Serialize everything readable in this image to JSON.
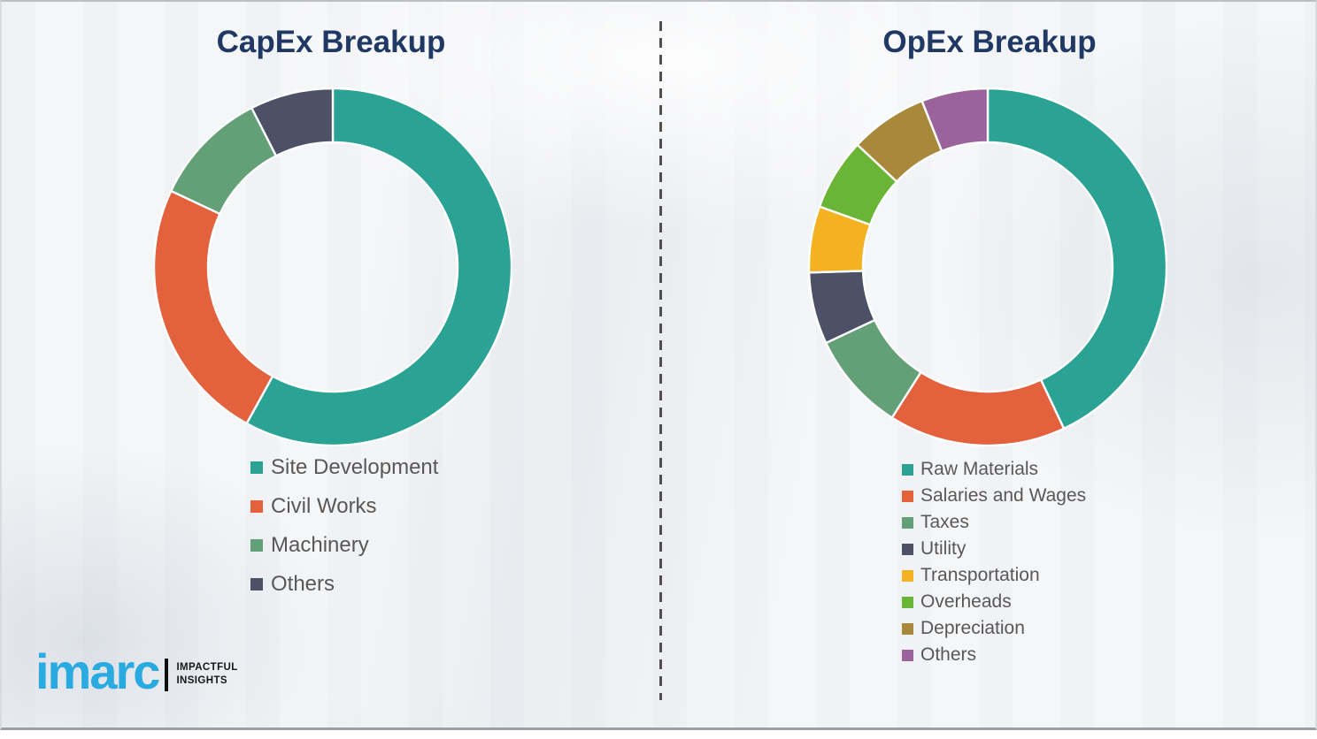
{
  "page": {
    "background_color": "#f5f6f8",
    "divider_color": "#4f4f4f",
    "title_color": "#203864",
    "legend_text_color": "#585858"
  },
  "capex": {
    "title": "CapEx Breakup"
  },
  "opex": {
    "title": "OpEx Breakup"
  },
  "logo": {
    "brand": "imarc",
    "tagline_line1": "IMPACTFUL",
    "tagline_line2": "INSIGHTS",
    "brand_color": "#29aae1"
  },
  "chart_data": [
    {
      "type": "pie",
      "variant": "donut",
      "title": "CapEx Breakup",
      "direction": "clockwise",
      "start_angle_deg": 0,
      "legend_position": "below-left",
      "segment_separator_color": "#ffffff",
      "segments": [
        {
          "label": "Site Development",
          "value": 58,
          "color": "#2aa395"
        },
        {
          "label": "Civil Works",
          "value": 24,
          "color": "#e4613e"
        },
        {
          "label": "Machinery",
          "value": 10.5,
          "color": "#63a077"
        },
        {
          "label": "Others",
          "value": 7.5,
          "color": "#4d5168"
        }
      ]
    },
    {
      "type": "pie",
      "variant": "donut",
      "title": "OpEx Breakup",
      "direction": "clockwise",
      "start_angle_deg": 0,
      "legend_position": "below-left",
      "segment_separator_color": "#ffffff",
      "segments": [
        {
          "label": "Raw Materials",
          "value": 43,
          "color": "#2aa395"
        },
        {
          "label": "Salaries and Wages",
          "value": 16,
          "color": "#e4613e"
        },
        {
          "label": "Taxes",
          "value": 9,
          "color": "#63a077"
        },
        {
          "label": "Utility",
          "value": 6.5,
          "color": "#4d5168"
        },
        {
          "label": "Transportation",
          "value": 6,
          "color": "#f4b223"
        },
        {
          "label": "Overheads",
          "value": 6.5,
          "color": "#6ab436"
        },
        {
          "label": "Depreciation",
          "value": 7,
          "color": "#a8893c"
        },
        {
          "label": "Others",
          "value": 6,
          "color": "#9b639b"
        }
      ]
    }
  ]
}
